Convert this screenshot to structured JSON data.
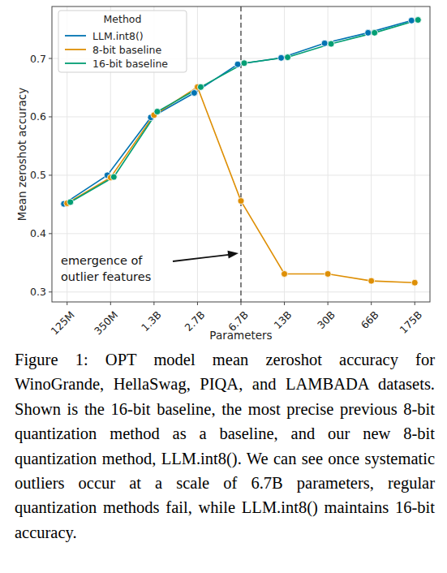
{
  "chart_data": {
    "type": "line",
    "categories": [
      "125M",
      "350M",
      "1.3B",
      "2.7B",
      "6.7B",
      "13B",
      "30B",
      "66B",
      "175B"
    ],
    "series": [
      {
        "name": "LLM.int8()",
        "color": "#0173b2",
        "marker": "circle",
        "values": [
          0.451,
          0.5,
          0.599,
          0.641,
          0.69,
          0.701,
          0.726,
          0.744,
          0.765
        ]
      },
      {
        "name": "8-bit baseline",
        "color": "#de8f05",
        "marker": "circle",
        "values": [
          0.452,
          0.496,
          0.603,
          0.651,
          0.456,
          0.331,
          0.331,
          0.319,
          0.316
        ]
      },
      {
        "name": "16-bit baseline",
        "color": "#029e73",
        "marker": "circle",
        "values": [
          0.454,
          0.497,
          0.609,
          0.651,
          0.692,
          0.702,
          0.725,
          0.744,
          0.766
        ]
      }
    ],
    "x_label": "Parameters",
    "y_label": "Mean zeroshot accuracy",
    "ylim": [
      0.283,
      0.789
    ],
    "yticks": [
      0.3,
      0.4,
      0.5,
      0.6,
      0.7
    ],
    "grid": true,
    "legend": "upper left",
    "legend_title": "Method",
    "annotations": [
      {
        "text": "emergence of\noutlier features",
        "x": "6.7B"
      }
    ]
  },
  "caption": "Figure 1: OPT model mean zeroshot accuracy for WinoGrande, HellaSwag, PIQA, and LAMBADA datasets. Shown is the 16-bit baseline, the most precise previous 8-bit quantization method as a baseline, and our new 8-bit quantization method, LLM.int8(). We can see once systematic outliers occur at a scale of 6.7B parameters, regular quantization methods fail, while LLM.int8() maintains 16-bit accuracy."
}
